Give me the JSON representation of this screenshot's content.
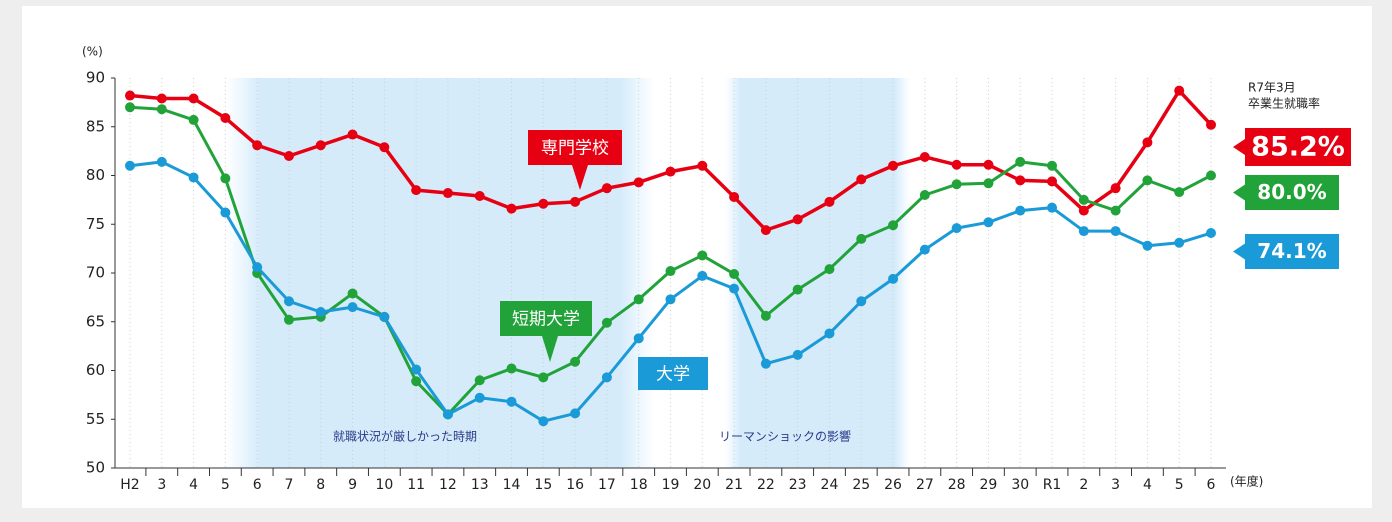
{
  "chart_data": {
    "type": "line",
    "y_label": "(%)",
    "x_label": "(年度)",
    "caption": [
      "R7年3月",
      "卒業生就職率"
    ],
    "annotations": [
      "就職状況が厳しかった時期",
      "リーマンショックの影響"
    ],
    "categories": [
      "H2",
      "3",
      "4",
      "5",
      "6",
      "7",
      "8",
      "9",
      "10",
      "11",
      "12",
      "13",
      "14",
      "15",
      "16",
      "17",
      "18",
      "19",
      "20",
      "21",
      "22",
      "23",
      "24",
      "25",
      "26",
      "27",
      "28",
      "29",
      "30",
      "R1",
      "2",
      "3",
      "4",
      "5",
      "6"
    ],
    "ylim": [
      50,
      90
    ],
    "yticks": [
      50,
      55,
      60,
      65,
      70,
      75,
      80,
      85,
      90
    ],
    "series": [
      {
        "name": "専門学校",
        "color": "#e60012",
        "values": [
          88.2,
          87.9,
          87.9,
          85.9,
          83.1,
          82.0,
          83.1,
          84.2,
          82.9,
          78.5,
          78.2,
          77.9,
          76.6,
          77.1,
          77.3,
          78.7,
          79.3,
          80.4,
          81.0,
          77.8,
          74.4,
          75.5,
          77.3,
          79.6,
          81.0,
          81.9,
          81.1,
          81.1,
          79.5,
          79.4,
          76.4,
          78.7,
          83.4,
          88.7,
          85.2
        ],
        "value_labels": [
          null,
          null,
          null,
          null,
          null,
          null,
          null,
          null,
          null,
          null,
          null,
          null,
          null,
          null,
          null,
          null,
          null,
          null,
          null,
          null,
          null,
          null,
          null,
          null,
          null,
          null,
          null,
          null,
          null,
          null,
          null,
          null,
          null,
          null,
          "85.2%"
        ]
      },
      {
        "name": "短期大学",
        "color": "#22a33a",
        "values": [
          87.0,
          86.8,
          85.7,
          79.7,
          70.0,
          65.2,
          65.5,
          67.9,
          65.5,
          58.9,
          55.5,
          59.0,
          60.2,
          59.3,
          60.9,
          64.9,
          67.3,
          70.2,
          71.8,
          69.9,
          65.6,
          68.3,
          70.4,
          73.5,
          74.9,
          78.0,
          79.1,
          79.2,
          81.4,
          81.0,
          77.5,
          76.4,
          79.5,
          78.3,
          80.0
        ],
        "value_labels": [
          null,
          null,
          null,
          null,
          null,
          null,
          null,
          null,
          null,
          null,
          null,
          null,
          null,
          null,
          null,
          null,
          null,
          null,
          null,
          null,
          null,
          null,
          null,
          null,
          null,
          null,
          null,
          null,
          null,
          null,
          null,
          null,
          null,
          null,
          "80.0%"
        ]
      },
      {
        "name": "大学",
        "color": "#1a9ad6",
        "values": [
          81.0,
          81.4,
          79.8,
          76.2,
          70.6,
          67.1,
          66.0,
          66.5,
          65.5,
          60.1,
          55.5,
          57.2,
          56.8,
          54.8,
          55.6,
          59.3,
          63.3,
          67.3,
          69.7,
          68.4,
          60.7,
          61.6,
          63.8,
          67.1,
          69.4,
          72.4,
          74.6,
          75.2,
          76.4,
          76.7,
          74.3,
          74.3,
          72.8,
          73.1,
          74.1
        ],
        "value_labels": [
          null,
          null,
          null,
          null,
          null,
          null,
          null,
          null,
          null,
          null,
          null,
          null,
          null,
          null,
          null,
          null,
          null,
          null,
          null,
          null,
          null,
          null,
          null,
          null,
          null,
          null,
          null,
          null,
          null,
          null,
          null,
          null,
          null,
          null,
          "74.1%"
        ]
      }
    ]
  }
}
